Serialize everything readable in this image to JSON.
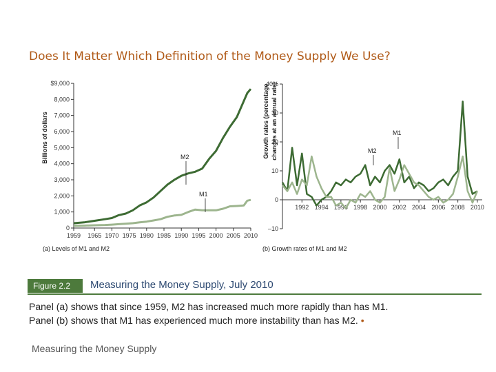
{
  "slide_title": "Does It Matter Which Definition of the Money Supply We Use?",
  "figure_tag": "Figure 2.2",
  "figure_title": "Measuring the Money Supply, July 2010",
  "caption_line1": "Panel (a) shows that since 1959, M2 has increased much more rapidly than has M1.",
  "caption_line2": "Panel (b) shows that M1 has experienced much more instability than has M2.",
  "caption_bullet": "•",
  "footer_text": "Measuring the Money Supply",
  "colors": {
    "title": "#b05a18",
    "m2": "#3d6b33",
    "m1": "#9db58e",
    "tag": "#4d7a3c",
    "figure_title": "#2e4a72"
  },
  "chart_data": [
    {
      "type": "line",
      "panel_label": "(a) Levels of M1 and M2",
      "ylabel": "Billions of dollars",
      "xlim": [
        1959,
        2010
      ],
      "ylim": [
        0,
        9000
      ],
      "x_ticks": [
        "1959",
        "1965",
        "1970",
        "1975",
        "1980",
        "1985",
        "1990",
        "1995",
        "2000",
        "2005",
        "2010"
      ],
      "y_ticks": [
        "0",
        "1,000",
        "2,000",
        "3,000",
        "4,000",
        "5,000",
        "6,000",
        "7,000",
        "8,000",
        "$9,000"
      ],
      "series": [
        {
          "name": "M2",
          "x": [
            1959,
            1962,
            1965,
            1968,
            1970,
            1972,
            1974,
            1976,
            1978,
            1980,
            1982,
            1984,
            1986,
            1988,
            1990,
            1992,
            1994,
            1996,
            1998,
            2000,
            2002,
            2004,
            2006,
            2008,
            2009,
            2010
          ],
          "values": [
            300,
            350,
            450,
            550,
            620,
            800,
            900,
            1100,
            1400,
            1600,
            1900,
            2300,
            2700,
            3000,
            3250,
            3400,
            3500,
            3700,
            4300,
            4800,
            5600,
            6300,
            6900,
            7900,
            8400,
            8650
          ]
        },
        {
          "name": "M1",
          "x": [
            1959,
            1962,
            1965,
            1968,
            1970,
            1972,
            1974,
            1976,
            1978,
            1980,
            1982,
            1984,
            1986,
            1988,
            1990,
            1992,
            1994,
            1996,
            1998,
            2000,
            2002,
            2004,
            2006,
            2008,
            2009,
            2010
          ],
          "values": [
            140,
            150,
            170,
            190,
            210,
            240,
            270,
            300,
            350,
            400,
            470,
            550,
            700,
            780,
            820,
            1000,
            1150,
            1100,
            1100,
            1100,
            1200,
            1350,
            1370,
            1400,
            1700,
            1750
          ]
        }
      ]
    },
    {
      "type": "line",
      "panel_label": "(b) Growth rates of M1 and M2",
      "ylabel": "Growth rates (percentage changes at an annual rate)",
      "xlim": [
        1990,
        2010.5
      ],
      "ylim": [
        -10,
        40
      ],
      "x_ticks": [
        "1992",
        "1994",
        "1996",
        "1998",
        "2000",
        "2002",
        "2004",
        "2006",
        "2008",
        "2010"
      ],
      "y_ticks": [
        "–10",
        "0",
        "10",
        "20",
        "30",
        "40%"
      ],
      "series": [
        {
          "name": "M1",
          "x": [
            1990,
            1990.5,
            1991,
            1991.5,
            1992,
            1992.5,
            1993,
            1993.5,
            1994,
            1994.5,
            1995,
            1995.5,
            1996,
            1996.5,
            1997,
            1997.5,
            1998,
            1998.5,
            1999,
            1999.5,
            2000,
            2000.5,
            2001,
            2001.5,
            2002,
            2002.5,
            2003,
            2003.5,
            2004,
            2004.5,
            2005,
            2005.5,
            2006,
            2006.5,
            2007,
            2007.5,
            2008,
            2008.5,
            2009,
            2009.5,
            2010
          ],
          "values": [
            5,
            3,
            6,
            2,
            7,
            5,
            15,
            8,
            4,
            1,
            1,
            -2,
            -1,
            -3,
            0,
            -1,
            2,
            1,
            3,
            0,
            -1,
            1,
            11,
            3,
            7,
            12,
            9,
            6,
            5,
            3,
            1,
            0,
            1,
            -1,
            0,
            2,
            8,
            15,
            3,
            -1,
            3
          ]
        },
        {
          "name": "M2",
          "x": [
            1990,
            1990.5,
            1991,
            1991.5,
            1992,
            1992.5,
            1993,
            1993.5,
            1994,
            1994.5,
            1995,
            1995.5,
            1996,
            1996.5,
            1997,
            1997.5,
            1998,
            1998.5,
            1999,
            1999.5,
            2000,
            2000.5,
            2001,
            2001.5,
            2002,
            2002.5,
            2003,
            2003.5,
            2004,
            2004.5,
            2005,
            2005.5,
            2006,
            2006.5,
            2007,
            2007.5,
            2008,
            2008.5,
            2009,
            2009.5,
            2010
          ],
          "values": [
            6,
            3,
            18,
            5,
            16,
            2,
            1,
            -2,
            0,
            1,
            3,
            6,
            5,
            7,
            6,
            8,
            9,
            12,
            5,
            8,
            6,
            10,
            12,
            9,
            14,
            6,
            8,
            4,
            6,
            5,
            3,
            4,
            6,
            7,
            5,
            8,
            10,
            34,
            8,
            2,
            3
          ]
        }
      ]
    }
  ]
}
